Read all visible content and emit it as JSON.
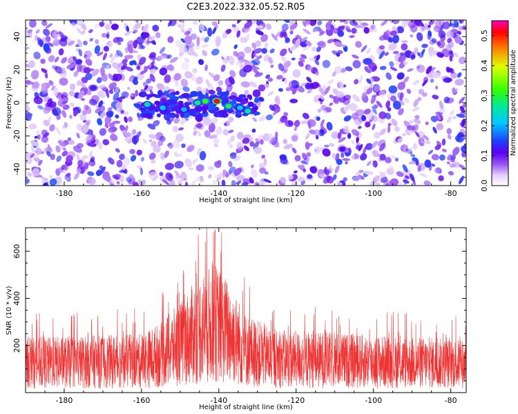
{
  "title": "C2E3.2022.332.05.52.R05",
  "chart_data": [
    {
      "type": "heatmap",
      "title": "C2E3.2022.332.05.52.R05",
      "xlabel": "Height of straight line (km)",
      "ylabel": "Frequency (Hz)",
      "xlim": [
        -190,
        -76
      ],
      "ylim": [
        -50,
        50
      ],
      "xticks": [
        -180,
        -160,
        -140,
        -120,
        -100,
        -80
      ],
      "yticks": [
        -40,
        -20,
        0,
        20,
        40
      ],
      "colorbar": {
        "label": "Normalized spectral amplitude",
        "range": [
          0.0,
          0.55
        ],
        "ticks": [
          0.0,
          0.1,
          0.2,
          0.3,
          0.4,
          0.5
        ]
      },
      "hotspots": [
        {
          "x": -140.5,
          "y": 1,
          "value": 0.52
        },
        {
          "x": -143.5,
          "y": 1,
          "value": 0.32
        },
        {
          "x": -145.5,
          "y": 0,
          "value": 0.28
        },
        {
          "x": -137.5,
          "y": -2,
          "value": 0.3
        },
        {
          "x": -132.5,
          "y": -5,
          "value": 0.27
        },
        {
          "x": -158.5,
          "y": -1,
          "value": 0.25
        },
        {
          "x": -154.5,
          "y": -3,
          "value": 0.22
        },
        {
          "x": -149.0,
          "y": -4,
          "value": 0.2
        },
        {
          "x": -134.5,
          "y": -3,
          "value": 0.22
        },
        {
          "x": -101.5,
          "y": 25,
          "value": 0.16
        },
        {
          "x": -172.5,
          "y": 9,
          "value": 0.13
        },
        {
          "x": -108.0,
          "y": -28,
          "value": 0.12
        }
      ]
    },
    {
      "type": "line",
      "xlabel": "Height of straight line (km)",
      "ylabel": "SNR (10 * v/v)",
      "xlim": [
        -190,
        -76
      ],
      "ylim": [
        0,
        700
      ],
      "xticks": [
        -180,
        -160,
        -140,
        -120,
        -100,
        -80
      ],
      "yticks": [
        200,
        400,
        600
      ],
      "series": [
        {
          "name": "SNR",
          "color": "#ee3333"
        }
      ],
      "peak": {
        "x": -141,
        "y": 690
      },
      "envelope": [
        {
          "x": -190,
          "y": 140
        },
        {
          "x": -160,
          "y": 150
        },
        {
          "x": -155,
          "y": 180
        },
        {
          "x": -150,
          "y": 230
        },
        {
          "x": -145,
          "y": 300
        },
        {
          "x": -141,
          "y": 330
        },
        {
          "x": -137,
          "y": 280
        },
        {
          "x": -133,
          "y": 200
        },
        {
          "x": -125,
          "y": 160
        },
        {
          "x": -76,
          "y": 135
        }
      ]
    }
  ]
}
